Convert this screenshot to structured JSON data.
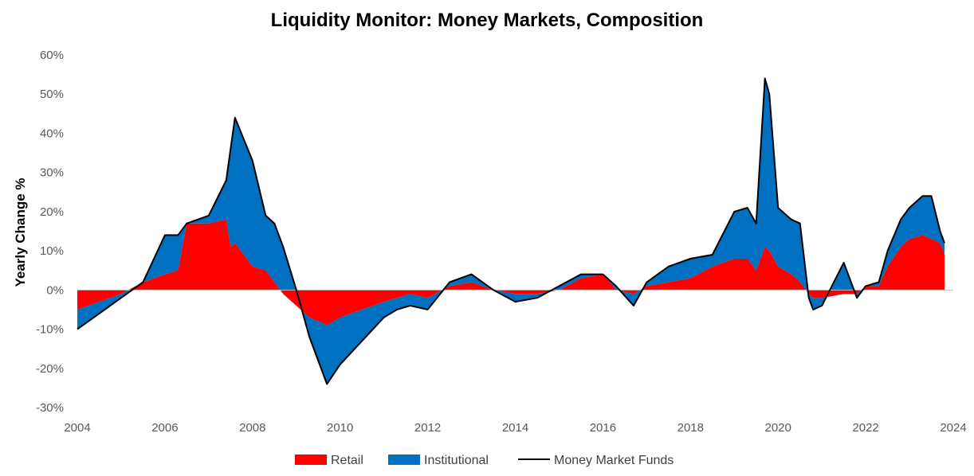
{
  "chart_data": {
    "type": "area",
    "title": "Liquidity Monitor: Money Markets, Composition",
    "ylabel": "Yearly Change %",
    "xlabel": "",
    "xlim": [
      2004,
      2024
    ],
    "ylim": [
      -30,
      60
    ],
    "xticks": [
      "2004",
      "2006",
      "2008",
      "2010",
      "2012",
      "2014",
      "2016",
      "2018",
      "2020",
      "2022",
      "2024"
    ],
    "yticks": [
      "60%",
      "50%",
      "40%",
      "30%",
      "20%",
      "10%",
      "0%",
      "-10%",
      "-20%",
      "-30%"
    ],
    "grid": false,
    "legend_position": "bottom",
    "colors": {
      "retail": "#ff0000",
      "institutional": "#0070c0",
      "total": "#000000"
    },
    "x": [
      2004.0,
      2004.5,
      2005.0,
      2005.5,
      2006.0,
      2006.3,
      2006.5,
      2007.0,
      2007.4,
      2007.5,
      2007.6,
      2008.0,
      2008.3,
      2008.5,
      2008.7,
      2009.0,
      2009.3,
      2009.7,
      2010.0,
      2010.5,
      2011.0,
      2011.3,
      2011.6,
      2012.0,
      2012.5,
      2013.0,
      2013.5,
      2014.0,
      2014.5,
      2015.0,
      2015.5,
      2016.0,
      2016.3,
      2016.7,
      2017.0,
      2017.5,
      2018.0,
      2018.5,
      2019.0,
      2019.3,
      2019.5,
      2019.7,
      2019.8,
      2020.0,
      2020.3,
      2020.5,
      2020.7,
      2020.8,
      2021.0,
      2021.5,
      2021.8,
      2022.0,
      2022.3,
      2022.5,
      2022.8,
      2023.0,
      2023.3,
      2023.5,
      2023.7,
      2023.8
    ],
    "series": [
      {
        "name": "Retail",
        "values": [
          -5,
          -3,
          -1,
          2,
          4,
          5,
          17,
          17,
          18,
          11,
          12,
          6,
          5,
          2,
          -1,
          -4,
          -7,
          -9,
          -7,
          -5,
          -3,
          -2,
          -1,
          -2,
          1,
          2,
          0,
          -1,
          -1,
          0,
          3,
          4,
          0,
          -1,
          1,
          2,
          3,
          6,
          8,
          8,
          5,
          11,
          10,
          6,
          4,
          2,
          -1,
          -2,
          -2,
          -1,
          -1,
          1,
          1,
          6,
          11,
          13,
          14,
          13,
          12,
          9
        ]
      },
      {
        "name": "Institutional",
        "values": [
          -5,
          -3,
          -1,
          0,
          10,
          9,
          0,
          2,
          10,
          25,
          32,
          27,
          14,
          15,
          12,
          4,
          -5,
          -15,
          -12,
          -8,
          -4,
          -3,
          -3,
          -3,
          1,
          2,
          0,
          -2,
          -1,
          1,
          1,
          0,
          1,
          -3,
          1,
          4,
          5,
          3,
          12,
          13,
          12,
          43,
          40,
          15,
          14,
          15,
          -1,
          -3,
          -2,
          8,
          -1,
          0,
          1,
          4,
          7,
          8,
          10,
          11,
          3,
          3
        ]
      },
      {
        "name": "Money Market Funds",
        "values": [
          -10,
          -6,
          -2,
          2,
          14,
          14,
          17,
          19,
          28,
          36,
          44,
          33,
          19,
          17,
          11,
          0,
          -12,
          -24,
          -19,
          -13,
          -7,
          -5,
          -4,
          -5,
          2,
          4,
          0,
          -3,
          -2,
          1,
          4,
          4,
          1,
          -4,
          2,
          6,
          8,
          9,
          20,
          21,
          17,
          54,
          50,
          21,
          18,
          17,
          -2,
          -5,
          -4,
          7,
          -2,
          1,
          2,
          10,
          18,
          21,
          24,
          24,
          15,
          12
        ]
      }
    ]
  }
}
